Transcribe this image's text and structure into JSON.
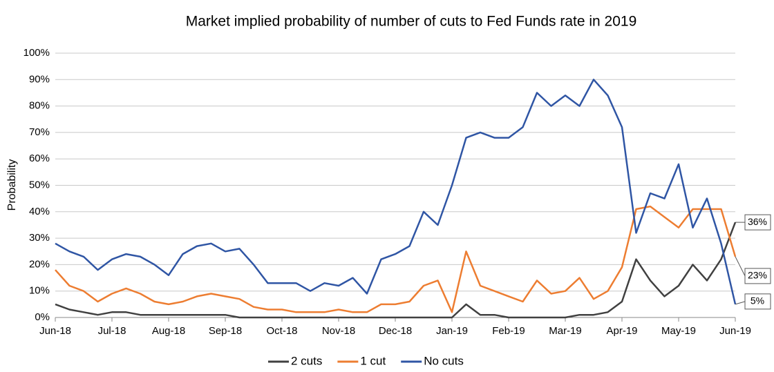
{
  "chart_data": {
    "type": "line",
    "title": "Market implied probability of number of cuts to Fed Funds rate in 2019",
    "y_label": "Probability",
    "categories": [
      "Jun-18",
      null,
      null,
      null,
      "Jul-18",
      null,
      null,
      null,
      "Aug-18",
      null,
      null,
      null,
      "Sep-18",
      null,
      null,
      null,
      "Oct-18",
      null,
      null,
      null,
      "Nov-18",
      null,
      null,
      null,
      "Dec-18",
      null,
      null,
      null,
      "Jan-19",
      null,
      null,
      null,
      "Feb-19",
      null,
      null,
      null,
      "Mar-19",
      null,
      null,
      null,
      "Apr-19",
      null,
      null,
      null,
      "May-19",
      null,
      null,
      null,
      "Jun-19"
    ],
    "series": [
      {
        "name": "2 cuts",
        "color": "#404040",
        "values": [
          5,
          3,
          2,
          1,
          2,
          2,
          1,
          1,
          1,
          1,
          1,
          1,
          1,
          0,
          0,
          0,
          0,
          0,
          0,
          0,
          0,
          0,
          0,
          0,
          0,
          0,
          0,
          0,
          0,
          5,
          1,
          1,
          0,
          0,
          0,
          0,
          0,
          1,
          1,
          2,
          6,
          22,
          14,
          8,
          12,
          20,
          14,
          22,
          36
        ],
        "value_labels": [
          null,
          null,
          null,
          null,
          null,
          null,
          null,
          null,
          null,
          null,
          null,
          null,
          null,
          null,
          null,
          null,
          null,
          null,
          null,
          null,
          null,
          null,
          null,
          null,
          null,
          null,
          null,
          null,
          null,
          null,
          null,
          null,
          null,
          null,
          null,
          null,
          null,
          null,
          null,
          null,
          null,
          null,
          null,
          null,
          null,
          null,
          null,
          null,
          "36%"
        ]
      },
      {
        "name": "1 cut",
        "color": "#ed7d31",
        "values": [
          18,
          12,
          10,
          6,
          9,
          11,
          9,
          6,
          5,
          6,
          8,
          9,
          8,
          7,
          4,
          3,
          3,
          2,
          2,
          2,
          3,
          2,
          2,
          5,
          5,
          6,
          12,
          14,
          2,
          25,
          12,
          10,
          8,
          6,
          14,
          9,
          10,
          15,
          7,
          10,
          19,
          41,
          42,
          38,
          34,
          41,
          41,
          41,
          23
        ],
        "value_labels": [
          null,
          null,
          null,
          null,
          null,
          null,
          null,
          null,
          null,
          null,
          null,
          null,
          null,
          null,
          null,
          null,
          null,
          null,
          null,
          null,
          null,
          null,
          null,
          null,
          null,
          null,
          null,
          null,
          null,
          null,
          null,
          null,
          null,
          null,
          null,
          null,
          null,
          null,
          null,
          null,
          null,
          null,
          null,
          null,
          null,
          null,
          null,
          null,
          "23%"
        ]
      },
      {
        "name": "No cuts",
        "color": "#2f55a4",
        "values": [
          28,
          25,
          23,
          18,
          22,
          24,
          23,
          20,
          16,
          24,
          27,
          28,
          25,
          26,
          20,
          13,
          13,
          13,
          10,
          13,
          12,
          15,
          9,
          22,
          24,
          27,
          40,
          35,
          50,
          68,
          70,
          68,
          68,
          72,
          85,
          80,
          84,
          80,
          90,
          84,
          72,
          32,
          47,
          45,
          58,
          34,
          45,
          28,
          5
        ],
        "value_labels": [
          null,
          null,
          null,
          null,
          null,
          null,
          null,
          null,
          null,
          null,
          null,
          null,
          null,
          null,
          null,
          null,
          null,
          null,
          null,
          null,
          null,
          null,
          null,
          null,
          null,
          null,
          null,
          null,
          null,
          null,
          null,
          null,
          null,
          null,
          null,
          null,
          null,
          null,
          null,
          null,
          null,
          null,
          null,
          null,
          null,
          null,
          null,
          null,
          "5%"
        ]
      }
    ],
    "ylim": [
      0,
      100
    ],
    "yticks": [
      {
        "value": 0,
        "label": "0%"
      },
      {
        "value": 10,
        "label": "10%"
      },
      {
        "value": 20,
        "label": "20%"
      },
      {
        "value": 30,
        "label": "30%"
      },
      {
        "value": 40,
        "label": "40%"
      },
      {
        "value": 50,
        "label": "50%"
      },
      {
        "value": 60,
        "label": "60%"
      },
      {
        "value": 70,
        "label": "70%"
      },
      {
        "value": 80,
        "label": "80%"
      },
      {
        "value": 90,
        "label": "90%"
      },
      {
        "value": 100,
        "label": "100%"
      }
    ],
    "grid": true,
    "legend": "bottom"
  }
}
